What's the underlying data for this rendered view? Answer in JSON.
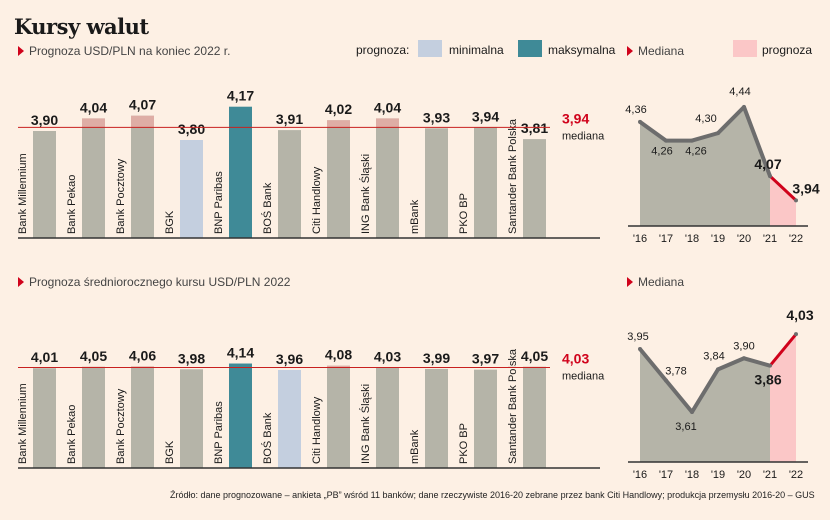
{
  "title": "Kursy walut",
  "legend": {
    "label": "prognoza:",
    "min_label": "minimalna",
    "max_label": "maksymalna",
    "min_color": "#c4cfdf",
    "max_color": "#3f8a97",
    "bar_color": "#b5b4a8"
  },
  "chart_data": [
    {
      "type": "bar",
      "title": "Prognoza USD/PLN na koniec 2022 r.",
      "categories": [
        "Bank Millennium",
        "Bank Pekao",
        "Bank Pocztowy",
        "BGK",
        "BNP Paribas",
        "BOŚ Bank",
        "Citi Handlowy",
        "ING Bank Śląski",
        "mBank",
        "PKO BP",
        "Santander Bank Polska"
      ],
      "values": [
        3.9,
        4.04,
        4.07,
        3.8,
        4.17,
        3.91,
        4.02,
        4.04,
        3.93,
        3.94,
        3.81
      ],
      "value_labels": [
        "3,90",
        "4,04",
        "4,07",
        "3,80",
        "4,17",
        "3,91",
        "4,02",
        "4,04",
        "3,93",
        "3,94",
        "3,81"
      ],
      "highlight": [
        "",
        "",
        "",
        "min",
        "max",
        "",
        "",
        "",
        "",
        "",
        ""
      ],
      "median": 3.94,
      "median_label": "3,94",
      "median_text": "mediana"
    },
    {
      "type": "line",
      "title": "Mediana",
      "x": [
        "'16",
        "'17",
        "'18",
        "'19",
        "'20",
        "'21",
        "'22"
      ],
      "values": [
        4.36,
        4.26,
        4.26,
        4.3,
        4.44,
        4.07,
        3.94
      ],
      "value_labels": [
        "4,36",
        "4,26",
        "4,26",
        "4,30",
        "4,44",
        "4,07",
        "3,94"
      ],
      "forecast_label": "prognoza",
      "forecast_color": "#fbc7c7"
    },
    {
      "type": "bar",
      "title": "Prognoza średniorocznego kursu USD/PLN 2022",
      "categories": [
        "Bank Millennium",
        "Bank Pekao",
        "Bank Pocztowy",
        "BGK",
        "BNP Paribas",
        "BOŚ Bank",
        "Citi Handlowy",
        "ING Bank Śląski",
        "mBank",
        "PKO BP",
        "Santander Bank Polska"
      ],
      "values": [
        4.01,
        4.05,
        4.06,
        3.98,
        4.14,
        3.96,
        4.08,
        4.03,
        3.99,
        3.97,
        4.05
      ],
      "value_labels": [
        "4,01",
        "4,05",
        "4,06",
        "3,98",
        "4,14",
        "3,96",
        "4,08",
        "4,03",
        "3,99",
        "3,97",
        "4,05"
      ],
      "highlight": [
        "",
        "",
        "",
        "",
        "max",
        "min",
        "",
        "",
        "",
        "",
        ""
      ],
      "median": 4.03,
      "median_label": "4,03",
      "median_text": "mediana"
    },
    {
      "type": "line",
      "title": "Mediana",
      "x": [
        "'16",
        "'17",
        "'18",
        "'19",
        "'20",
        "'21",
        "'22"
      ],
      "values": [
        3.95,
        3.78,
        3.61,
        3.84,
        3.9,
        3.86,
        4.03
      ],
      "value_labels": [
        "3,95",
        "3,78",
        "3,61",
        "3,84",
        "3,90",
        "3,86",
        "4,03"
      ],
      "forecast_color": "#fbc7c7"
    }
  ],
  "source": "Źródło: dane prognozowane – ankieta „PB” wśród 11 banków; dane rzeczywiste 2016-20 zebrane przez bank Citi Handlowy; produkcja przemysłu 2016-20 – GUS"
}
